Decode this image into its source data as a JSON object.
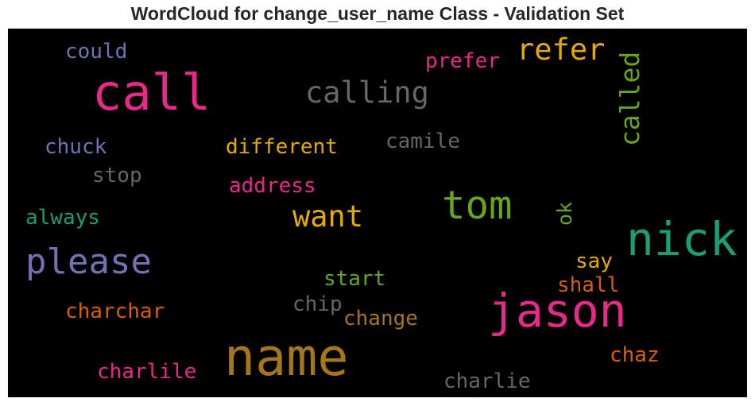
{
  "title": "WordCloud for change_user_name Class - Validation Set",
  "words": {
    "call": {
      "text": "call",
      "color": "#e7298a"
    },
    "name": {
      "text": "name",
      "color": "#a6761d"
    },
    "nick": {
      "text": "nick",
      "color": "#1b9e77"
    },
    "jason": {
      "text": "jason",
      "color": "#e7298a"
    },
    "please": {
      "text": "please",
      "color": "#7570b3"
    },
    "tom": {
      "text": "tom",
      "color": "#66a61e"
    },
    "calling": {
      "text": "calling",
      "color": "#666666"
    },
    "refer": {
      "text": "refer",
      "color": "#e6ab02"
    },
    "called": {
      "text": "called",
      "color": "#66a61e"
    },
    "want": {
      "text": "want",
      "color": "#e6ab02"
    },
    "prefer": {
      "text": "prefer",
      "color": "#e7298a"
    },
    "could": {
      "text": "could",
      "color": "#7570b3"
    },
    "chuck": {
      "text": "chuck",
      "color": "#7570b3"
    },
    "different": {
      "text": "different",
      "color": "#e6ab02"
    },
    "camile": {
      "text": "camile",
      "color": "#666666"
    },
    "stop": {
      "text": "stop",
      "color": "#666666"
    },
    "address": {
      "text": "address",
      "color": "#e7298a"
    },
    "always": {
      "text": "always",
      "color": "#1b9e77"
    },
    "ok": {
      "text": "ok",
      "color": "#66a61e"
    },
    "say": {
      "text": "say",
      "color": "#e6ab02"
    },
    "start": {
      "text": "start",
      "color": "#66a61e"
    },
    "shall": {
      "text": "shall",
      "color": "#d95f02"
    },
    "charchar": {
      "text": "charchar",
      "color": "#d95f02"
    },
    "chip": {
      "text": "chip",
      "color": "#666666"
    },
    "change": {
      "text": "change",
      "color": "#a6761d"
    },
    "chaz": {
      "text": "chaz",
      "color": "#d95f02"
    },
    "charlile": {
      "text": "charlile",
      "color": "#e7298a"
    },
    "charlie": {
      "text": "charlie",
      "color": "#666666"
    }
  }
}
